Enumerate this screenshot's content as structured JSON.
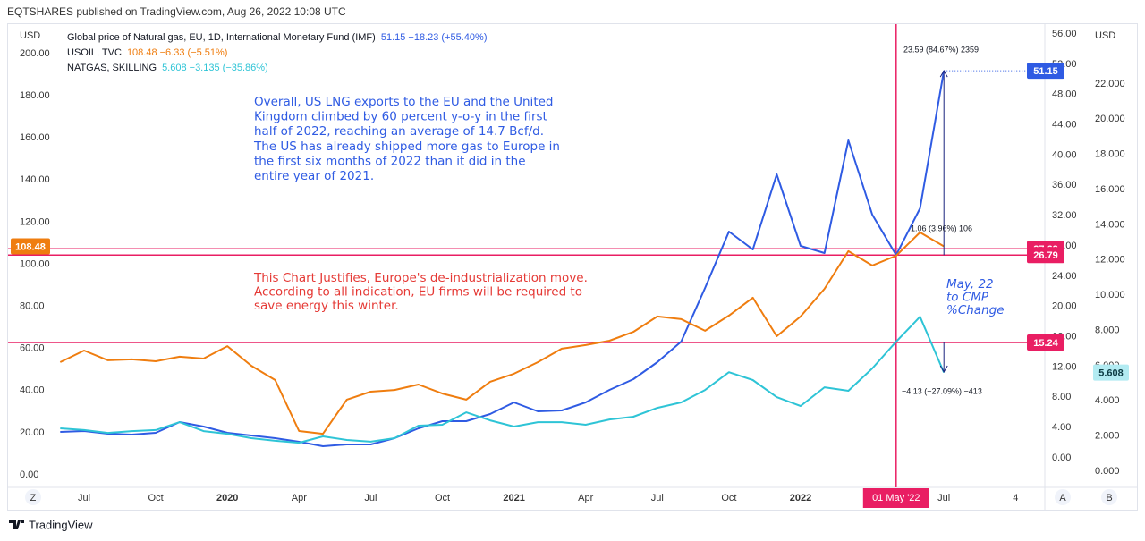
{
  "header": {
    "title": "EQTSHARES published on TradingView.com, Aug 26, 2022 10:08 UTC"
  },
  "footer": {
    "brand": "TradingView"
  },
  "buttons": [
    "Z",
    "A",
    "B"
  ],
  "chart_data": {
    "type": "line",
    "y_unit": "USD",
    "y3_unit": "USD",
    "grid": false,
    "categories": [
      null,
      "Jul",
      null,
      null,
      "Oct",
      null,
      null,
      "2020",
      null,
      null,
      "Apr",
      null,
      null,
      "Jul",
      null,
      null,
      "Oct",
      null,
      null,
      "2021",
      null,
      null,
      "Apr",
      null,
      null,
      "Jul",
      null,
      null,
      "Oct",
      null,
      null,
      "2022",
      null,
      null,
      null,
      null,
      null,
      "Jul",
      null,
      null,
      "4"
    ],
    "crosshair_label": "01 May '22",
    "series": [
      {
        "name": "Global price of Natural gas, EU, 1D, International Monetary Fund (IMF)",
        "quote": "51.15  +18.23 (+55.40%)",
        "color": "#2f5be3",
        "axis": "y2",
        "values": [
          3.43,
          3.54,
          3.19,
          3.07,
          3.31,
          4.73,
          4.14,
          3.31,
          2.95,
          2.6,
          2.13,
          1.54,
          1.77,
          1.77,
          2.6,
          3.9,
          4.84,
          4.84,
          5.79,
          7.33,
          6.14,
          6.26,
          7.33,
          8.98,
          10.4,
          12.64,
          15.36,
          22.45,
          29.89,
          27.53,
          37.45,
          28.0,
          27.06,
          41.94,
          32.14,
          26.8,
          32.96,
          51.15,
          null,
          null,
          null
        ]
      },
      {
        "name": "USOIL, TVC",
        "quote": "108.48  −6.33 (−5.51%)",
        "color": "#ef7d0f",
        "axis": "y",
        "values": [
          53.5,
          59.0,
          54.4,
          54.8,
          53.9,
          56.1,
          55.2,
          61.1,
          51.8,
          45.0,
          20.8,
          19.5,
          35.7,
          39.5,
          40.3,
          42.9,
          38.6,
          35.7,
          44.2,
          48.0,
          53.5,
          59.9,
          61.6,
          63.7,
          67.9,
          75.2,
          73.9,
          68.4,
          75.6,
          84.1,
          65.8,
          75.2,
          88.3,
          106.2,
          99.4,
          104.0,
          115.1,
          108.48,
          null,
          null,
          null
        ]
      },
      {
        "name": "NATGAS, SKILLING",
        "quote": "5.608  −3.135 (−35.86%)",
        "color": "#2ec4d6",
        "axis": "y3",
        "values": [
          2.44,
          2.34,
          2.18,
          2.28,
          2.34,
          2.79,
          2.28,
          2.13,
          1.88,
          1.73,
          1.62,
          1.98,
          1.78,
          1.68,
          1.88,
          2.59,
          2.64,
          3.35,
          2.89,
          2.54,
          2.79,
          2.79,
          2.64,
          2.94,
          3.1,
          3.6,
          3.91,
          4.62,
          5.63,
          5.18,
          4.21,
          3.71,
          4.77,
          4.57,
          5.84,
          7.36,
          8.78,
          5.608,
          null,
          null,
          null
        ]
      }
    ],
    "hlines": [
      {
        "value": 27.62,
        "axis": "y2",
        "color": "#e91e63"
      },
      {
        "value": 26.79,
        "axis": "y2",
        "color": "#e91e63"
      },
      {
        "value": 15.24,
        "axis": "y2",
        "color": "#e91e63"
      }
    ],
    "ylim": [
      -5.94,
      212.7
    ],
    "yticks": [
      {
        "value": 0,
        "label": "0.00"
      },
      {
        "value": 20,
        "label": "20.00"
      },
      {
        "value": 40,
        "label": "40.00"
      },
      {
        "value": 60,
        "label": "60.00"
      },
      {
        "value": 80,
        "label": "80.00"
      },
      {
        "value": 100,
        "label": "100.00"
      },
      {
        "value": 120,
        "label": "120.00"
      },
      {
        "value": 140,
        "label": "140.00"
      },
      {
        "value": 160,
        "label": "160.00"
      },
      {
        "value": 180,
        "label": "180.00"
      },
      {
        "value": 200,
        "label": "200.00"
      }
    ],
    "y2lim": [
      -3.9,
      56.95
    ],
    "y2ticks": [
      {
        "value": 0,
        "label": "0.00"
      },
      {
        "value": 4,
        "label": "4.00"
      },
      {
        "value": 8,
        "label": "8.00"
      },
      {
        "value": 12,
        "label": "12.00"
      },
      {
        "value": 16,
        "label": "16.00"
      },
      {
        "value": 20,
        "label": "20.00"
      },
      {
        "value": 24,
        "label": "24.00"
      },
      {
        "value": 28,
        "label": "28.00"
      },
      {
        "value": 32,
        "label": "32.00"
      },
      {
        "value": 36,
        "label": "36.00"
      },
      {
        "value": 40,
        "label": "40.00"
      },
      {
        "value": 44,
        "label": "44.00"
      },
      {
        "value": 48,
        "label": "48.00"
      },
      {
        "value": 52,
        "label": "52.00"
      },
      {
        "value": 56,
        "label": "56.00"
      }
    ],
    "y3lim": [
      -0.915,
      25.25
    ],
    "y3ticks": [
      {
        "value": 0,
        "label": "0.000"
      },
      {
        "value": 2,
        "label": "2.000"
      },
      {
        "value": 4,
        "label": "4.000"
      },
      {
        "value": 6,
        "label": "6.000"
      },
      {
        "value": 8,
        "label": "8.000"
      },
      {
        "value": 10,
        "label": "10.000"
      },
      {
        "value": 12,
        "label": "12.000"
      },
      {
        "value": 14,
        "label": "14.000"
      },
      {
        "value": 16,
        "label": "16.000"
      },
      {
        "value": 18,
        "label": "18.000"
      },
      {
        "value": 20,
        "label": "20.000"
      },
      {
        "value": 22,
        "label": "22.000"
      }
    ],
    "annotations": [
      {
        "lines": [
          "Overall, US LNG exports to the EU and the United",
          "Kingdom climbed by 60 percent y-o-y in the first",
          "half of 2022, reaching an average of 14.7 Bcf/d.",
          "The US has already shipped more gas to Europe in",
          "the first six months of 2022 than it did in the",
          "entire year of 2021."
        ],
        "color": "#2f5be3"
      },
      {
        "lines": [
          "This Chart Justifies, Europe's de-industrialization move.",
          "According to all indication, EU firms will be required to",
          "save energy this winter."
        ],
        "color": "#e53935"
      },
      {
        "lines": [
          "May, 22",
          "to CMP",
          "%Change"
        ],
        "color": "#2f5be3"
      }
    ],
    "measures": [
      "23.59 (84.67%) 2359",
      "1.06 (3.96%) 106",
      "−4.13 (−27.09%) −413"
    ]
  }
}
